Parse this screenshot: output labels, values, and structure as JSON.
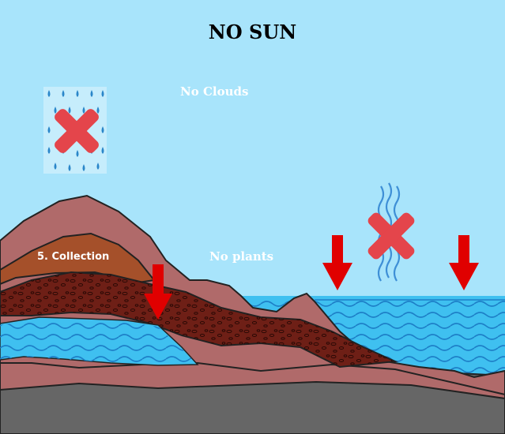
{
  "title": "NO SUN",
  "labels": {
    "no_clouds": "No Clouds",
    "collection": "5. Collection",
    "no_plants": "No plants"
  },
  "icons": {
    "rain": "rain-drops-icon",
    "cross": "red-x-icon",
    "vapor": "evaporation-waves-icon",
    "arrow": "down-arrow-icon"
  },
  "colors": {
    "sky": "#a8e4fb",
    "water": "#3fc0f0",
    "mountain": "#b06a6a",
    "soil": "#6e1f16",
    "rock": "#666666",
    "arrow": "#e00000",
    "cross": "#e4454b"
  }
}
